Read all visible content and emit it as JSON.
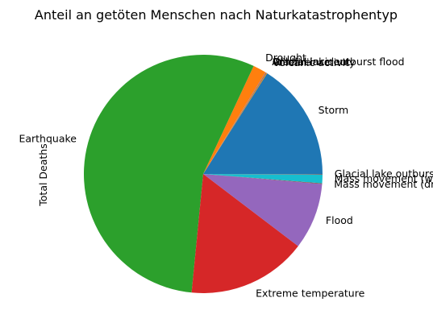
{
  "chart_data": {
    "type": "pie",
    "title": "Anteil an getöten Menschen nach Naturkatastrophentyp",
    "ylabel": "Total Deaths",
    "slices": [
      {
        "label": "Storm",
        "value": 16.0,
        "color": "#1f77b4"
      },
      {
        "label": "Volcanic activity",
        "value": 0.1,
        "color": "#ff7f0e"
      },
      {
        "label": "Wildfire",
        "value": 0.05,
        "color": "#2ca02c"
      },
      {
        "label": "Glacial lake outburst flood",
        "value": 0.05,
        "color": "#d62728"
      },
      {
        "label": "Animal incident",
        "value": 0.05,
        "color": "#9467bd"
      },
      {
        "label": "Drought",
        "value": 1.8,
        "color": "#ff7f0e"
      },
      {
        "label": "Earthquake",
        "value": 55.4,
        "color": "#2ca02c"
      },
      {
        "label": "Extreme temperature",
        "value": 16.2,
        "color": "#d62728"
      },
      {
        "label": "Flood",
        "value": 9.0,
        "color": "#9467bd"
      },
      {
        "label": "Mass movement (dry)",
        "value": 0.1,
        "color": "#8c564b"
      },
      {
        "label": "Mass movement (wet)",
        "value": 1.2,
        "color": "#17becf"
      },
      {
        "label": "Glacial lake outburst flood",
        "value": 0.05,
        "color": "#d62728"
      }
    ]
  }
}
